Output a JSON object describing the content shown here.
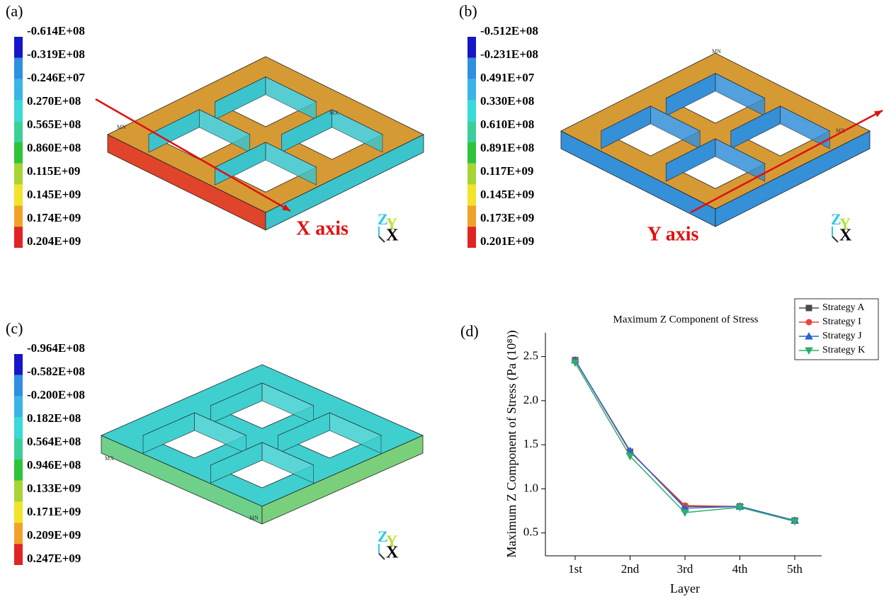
{
  "panels": [
    {
      "label": "(a)",
      "colorbar": [
        "-0.614E+08",
        "-0.319E+08",
        "-0.246E+07",
        "0.270E+08",
        "0.565E+08",
        "0.860E+08",
        "0.115E+09",
        "0.145E+09",
        "0.174E+09",
        "0.204E+09"
      ],
      "axis_label": "X axis",
      "triad": [
        "Z",
        "Y",
        "X"
      ],
      "markers": [
        "MN",
        "MX"
      ]
    },
    {
      "label": "(b)",
      "colorbar": [
        "-0.512E+08",
        "-0.231E+08",
        "0.491E+07",
        "0.330E+08",
        "0.610E+08",
        "0.891E+08",
        "0.117E+09",
        "0.145E+09",
        "0.173E+09",
        "0.201E+09"
      ],
      "axis_label": "Y axis",
      "triad": [
        "Z",
        "Y",
        "X"
      ],
      "markers": [
        "MN",
        "MX"
      ]
    },
    {
      "label": "(c)",
      "colorbar": [
        "-0.964E+08",
        "-0.582E+08",
        "-0.200E+08",
        "0.182E+08",
        "0.564E+08",
        "0.946E+08",
        "0.133E+09",
        "0.171E+09",
        "0.209E+09",
        "0.247E+09"
      ],
      "triad": [
        "Z",
        "Y",
        "X"
      ],
      "markers": [
        "MX",
        "MN"
      ]
    }
  ],
  "colorbar_colors": [
    "#1616c8",
    "#2f8fe0",
    "#3bb4e6",
    "#38dada",
    "#3ccf9a",
    "#2ec43a",
    "#a8d436",
    "#f2e42a",
    "#f0a22a",
    "#e02424"
  ],
  "chart_label": "(d)",
  "chart_data": {
    "type": "line",
    "title": "Maximum Z Component of Stress",
    "xlabel": "Layer",
    "ylabel": "Maximum Z Component of Stress (Pa (10⁸))",
    "categories": [
      "1st",
      "2nd",
      "3rd",
      "4th",
      "5th"
    ],
    "series": [
      {
        "name": "Strategy A",
        "color": "#4a4a4a",
        "marker": "square",
        "values": [
          2.46,
          1.42,
          0.8,
          0.8,
          0.64
        ]
      },
      {
        "name": "Strategy I",
        "color": "#e8453c",
        "marker": "circle",
        "values": [
          2.46,
          1.42,
          0.81,
          0.8,
          0.64
        ]
      },
      {
        "name": "Strategy J",
        "color": "#2a63d4",
        "marker": "triangle",
        "values": [
          2.46,
          1.43,
          0.78,
          0.8,
          0.64
        ]
      },
      {
        "name": "Strategy K",
        "color": "#2fae6a",
        "marker": "triangle-down",
        "values": [
          2.43,
          1.37,
          0.73,
          0.79,
          0.63
        ]
      }
    ],
    "ylim": [
      0.24,
      2.77
    ],
    "yticks": [
      0.5,
      {
        "value": 1,
        "label": "1.0"
      },
      1.5,
      {
        "value": 2,
        "label": "2.0"
      },
      2.5
    ]
  }
}
